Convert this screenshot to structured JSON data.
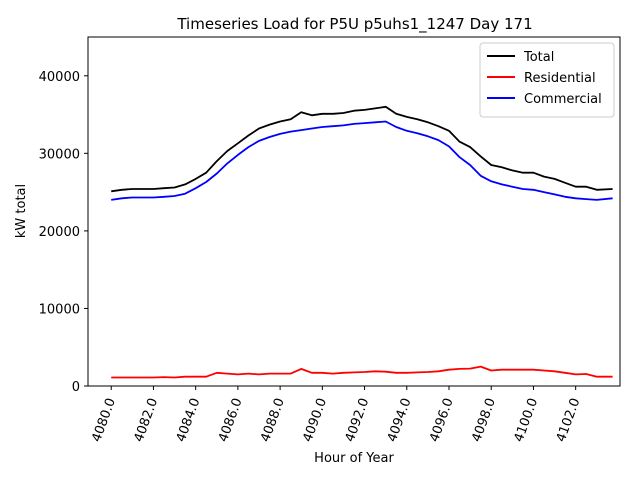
{
  "chart_data": {
    "type": "line",
    "title": "Timeseries Load for P5U p5uhs1_1247  Day 171",
    "xlabel": "Hour of Year",
    "ylabel": "kW total",
    "xlim": [
      4078.9,
      4104.1
    ],
    "ylim": [
      0,
      45000
    ],
    "xticks": [
      4080,
      4082,
      4084,
      4086,
      4088,
      4090,
      4092,
      4094,
      4096,
      4098,
      4100,
      4102
    ],
    "xtick_labels": [
      "4080.0",
      "4082.0",
      "4084.0",
      "4086.0",
      "4088.0",
      "4090.0",
      "4092.0",
      "4094.0",
      "4096.0",
      "4098.0",
      "4100.0",
      "4102.0"
    ],
    "yticks": [
      0,
      10000,
      20000,
      30000,
      40000
    ],
    "ytick_labels": [
      "0",
      "10000",
      "20000",
      "30000",
      "40000"
    ],
    "legend_position": "top-right",
    "x": [
      4080.0,
      4080.5,
      4081.0,
      4081.5,
      4082.0,
      4082.5,
      4083.0,
      4083.5,
      4084.0,
      4084.5,
      4085.0,
      4085.5,
      4086.0,
      4086.5,
      4087.0,
      4087.5,
      4088.0,
      4088.5,
      4089.0,
      4089.5,
      4090.0,
      4090.5,
      4091.0,
      4091.5,
      4092.0,
      4092.5,
      4093.0,
      4093.5,
      4094.0,
      4094.5,
      4095.0,
      4095.5,
      4096.0,
      4096.5,
      4097.0,
      4097.5,
      4098.0,
      4098.5,
      4099.0,
      4099.5,
      4100.0,
      4100.5,
      4101.0,
      4101.5,
      4102.0,
      4102.5,
      4103.0,
      4103.75
    ],
    "series": [
      {
        "name": "Total",
        "color": "#000000",
        "values": [
          25100,
          25300,
          25400,
          25400,
          25400,
          25500,
          25600,
          26000,
          26700,
          27500,
          29000,
          30300,
          31300,
          32300,
          33200,
          33700,
          34100,
          34400,
          35300,
          34900,
          35100,
          35100,
          35200,
          35500,
          35600,
          35800,
          36000,
          35100,
          34700,
          34400,
          34000,
          33500,
          32900,
          31500,
          30800,
          29600,
          28500,
          28200,
          27800,
          27500,
          27500,
          27000,
          26700,
          26200,
          25700,
          25700,
          25300,
          25400
        ]
      },
      {
        "name": "Residential",
        "color": "#ff0000",
        "values": [
          1100,
          1100,
          1100,
          1100,
          1100,
          1150,
          1100,
          1200,
          1200,
          1200,
          1700,
          1600,
          1500,
          1600,
          1500,
          1600,
          1600,
          1600,
          2200,
          1700,
          1700,
          1600,
          1700,
          1750,
          1800,
          1900,
          1850,
          1700,
          1700,
          1750,
          1800,
          1900,
          2100,
          2200,
          2250,
          2500,
          2000,
          2100,
          2100,
          2100,
          2100,
          2000,
          1900,
          1700,
          1500,
          1550,
          1200,
          1200
        ]
      },
      {
        "name": "Commercial",
        "color": "#0000ff",
        "values": [
          24000,
          24200,
          24300,
          24300,
          24300,
          24400,
          24500,
          24800,
          25500,
          26300,
          27400,
          28700,
          29800,
          30800,
          31600,
          32100,
          32500,
          32800,
          33000,
          33200,
          33400,
          33500,
          33600,
          33800,
          33900,
          34000,
          34100,
          33400,
          32900,
          32600,
          32200,
          31700,
          30900,
          29500,
          28500,
          27100,
          26400,
          26000,
          25700,
          25400,
          25300,
          25000,
          24700,
          24400,
          24200,
          24100,
          24000,
          24200
        ]
      }
    ]
  }
}
